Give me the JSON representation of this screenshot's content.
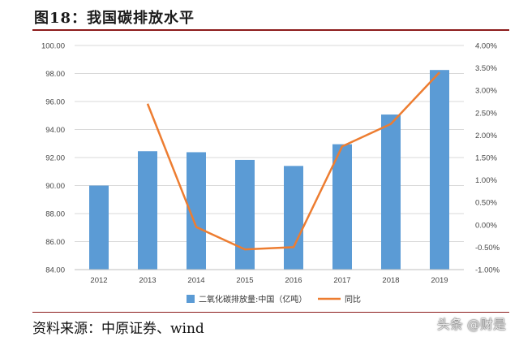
{
  "header": {
    "title": "图18：我国碳排放水平"
  },
  "footer": {
    "source": "资料来源：中原证券、wind",
    "watermark": "头条 @财是"
  },
  "colors": {
    "bar": "#5b9bd5",
    "line": "#ed7d31",
    "grid": "#d9d9d9",
    "rule": "#8c1c1c"
  },
  "chart_data": {
    "type": "bar",
    "categories": [
      "2012",
      "2013",
      "2014",
      "2015",
      "2016",
      "2017",
      "2018",
      "2019"
    ],
    "series": [
      {
        "name": "二氧化碳排放量:中国（亿吨）",
        "type": "bar",
        "axis": "left",
        "values": [
          90.0,
          92.45,
          92.38,
          91.83,
          91.4,
          92.95,
          95.07,
          98.25
        ]
      },
      {
        "name": "同比",
        "type": "line",
        "axis": "right",
        "values": [
          null,
          2.7,
          -0.05,
          -0.55,
          -0.5,
          1.75,
          2.25,
          3.4
        ]
      }
    ],
    "y_left": {
      "min": 84,
      "max": 100,
      "step": 2,
      "ticks": [
        "84.00",
        "86.00",
        "88.00",
        "90.00",
        "92.00",
        "94.00",
        "96.00",
        "98.00",
        "100.00"
      ]
    },
    "y_right": {
      "min": -1,
      "max": 4,
      "step": 0.5,
      "ticks": [
        "-1.00%",
        "-0.50%",
        "0.00%",
        "0.50%",
        "1.00%",
        "1.50%",
        "2.00%",
        "2.50%",
        "3.00%",
        "3.50%",
        "4.00%"
      ]
    },
    "legend_position": "bottom",
    "grid": true
  }
}
